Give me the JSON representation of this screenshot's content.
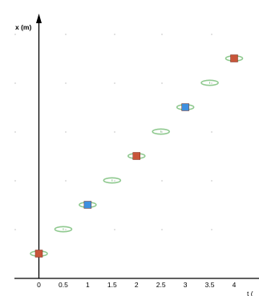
{
  "chart_data": {
    "type": "scatter",
    "title": "",
    "xlabel": "t (",
    "ylabel": "x (m)",
    "xlim": [
      0,
      4
    ],
    "ylim": [
      0,
      9
    ],
    "grid": true,
    "xticks": [
      "0",
      "0.5",
      "1",
      "1.5",
      "2",
      "2.5",
      "3",
      "3.5",
      "4"
    ],
    "series": [
      {
        "marker": "ellipse",
        "color": "#8fc98f",
        "points": [
          {
            "x": 0.0,
            "y": 0.0
          },
          {
            "x": 0.5,
            "y": 1.0
          },
          {
            "x": 1.0,
            "y": 2.0
          },
          {
            "x": 1.5,
            "y": 3.0
          },
          {
            "x": 2.0,
            "y": 4.0
          },
          {
            "x": 2.5,
            "y": 5.0
          },
          {
            "x": 3.0,
            "y": 6.0
          },
          {
            "x": 3.5,
            "y": 7.0
          },
          {
            "x": 4.0,
            "y": 8.0
          }
        ]
      },
      {
        "marker": "square",
        "color": "#c8553a",
        "points": [
          {
            "x": 0.0,
            "y": 0.0
          },
          {
            "x": 2.0,
            "y": 4.0
          },
          {
            "x": 4.0,
            "y": 8.0
          }
        ]
      },
      {
        "marker": "square",
        "color": "#3e90e0",
        "points": [
          {
            "x": 1.0,
            "y": 2.0
          },
          {
            "x": 3.0,
            "y": 6.0
          }
        ]
      }
    ]
  }
}
